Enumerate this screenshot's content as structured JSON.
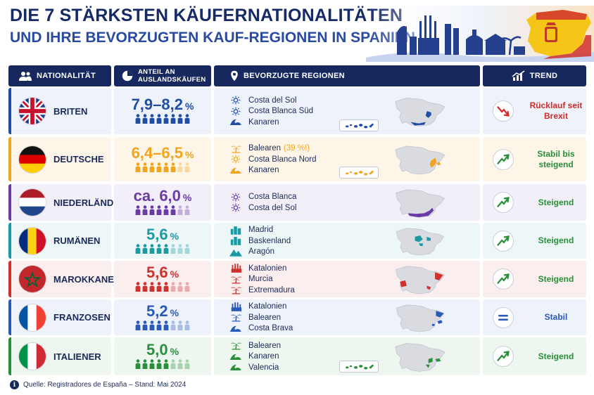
{
  "title": {
    "line1": "DIE 7 STÄRKSTEN KÄUFERNATIONALITÄTEN",
    "line2": "UND IHRE BEVORZUGTEN KAUF-REGIONEN IN SPANIEN"
  },
  "header": {
    "nationality": "NATIONALITÄT",
    "share_line1": "ANTEIL AN",
    "share_line2": "AUSLANDSKÄUFEN",
    "regions": "BEVORZUGTE REGIONEN",
    "trend": "TREND",
    "icons": [
      "people-icon",
      "pie-chart-icon",
      "location-pin-icon",
      "trend-chart-icon"
    ]
  },
  "rows": [
    {
      "name": "BRITEN",
      "share": "7,9–8,2",
      "unit": "%",
      "share_fraction": 0.82,
      "color": "#1f4ea3",
      "tint": "#eef2fa",
      "flag": "uk-flag",
      "regions": [
        {
          "label": "Costa del Sol",
          "note": "",
          "icon": "sun-icon"
        },
        {
          "label": "Costa Blanca Süd",
          "note": "",
          "icon": "sun-icon"
        },
        {
          "label": "Kanaren",
          "note": "",
          "icon": "wave-icon"
        }
      ],
      "canary_inset": true,
      "trend": {
        "icon": "trend-down-icon",
        "text": "Rücklauf seit Brexit",
        "color": "#d32a2a"
      }
    },
    {
      "name": "DEUTSCHE",
      "share": "6,4–6,5",
      "unit": "%",
      "share_fraction": 0.65,
      "color": "#f0a51e",
      "tint": "#fdf6e8",
      "flag": "germany-flag",
      "regions": [
        {
          "label": "Balearen",
          "note": "(39 %!)",
          "icon": "palm-tree-icon"
        },
        {
          "label": "Costa Blanca Nord",
          "note": "",
          "icon": "sun-icon"
        },
        {
          "label": "Kanaren",
          "note": "",
          "icon": "wave-icon"
        }
      ],
      "canary_inset": true,
      "trend": {
        "icon": "trend-up-icon",
        "text": "Stabil bis steigend",
        "color": "#2a8f3a"
      }
    },
    {
      "name": "NIEDERLÄNDER",
      "share": "ca. 6,0",
      "unit": "%",
      "share_fraction": 0.6,
      "color": "#6a3aa6",
      "tint": "#f3eff8",
      "flag": "netherlands-flag",
      "regions": [
        {
          "label": "Costa Blanca",
          "note": "",
          "icon": "sun-icon"
        },
        {
          "label": "Costa del Sol",
          "note": "",
          "icon": "sun-icon"
        }
      ],
      "canary_inset": false,
      "trend": {
        "icon": "trend-up-icon",
        "text": "Steigend",
        "color": "#2a8f3a"
      }
    },
    {
      "name": "RUMÄNEN",
      "share": "5,6",
      "unit": "%",
      "share_fraction": 0.56,
      "color": "#1c9aa4",
      "tint": "#edf7f8",
      "flag": "romania-flag",
      "regions": [
        {
          "label": "Madrid",
          "note": "",
          "icon": "city-icon"
        },
        {
          "label": "Baskenland",
          "note": "",
          "icon": "city-icon"
        },
        {
          "label": "Aragón",
          "note": "",
          "icon": "mountain-icon"
        }
      ],
      "canary_inset": false,
      "trend": {
        "icon": "trend-up-icon",
        "text": "Steigend",
        "color": "#2a8f3a"
      }
    },
    {
      "name": "MAROKKANER",
      "share": "5,6",
      "unit": "%",
      "share_fraction": 0.56,
      "color": "#d0312d",
      "tint": "#fbeeee",
      "flag": "morocco-flag",
      "regions": [
        {
          "label": "Katalonien",
          "note": "",
          "icon": "cathedral-icon"
        },
        {
          "label": "Murcia",
          "note": "",
          "icon": "palm-tree-icon"
        },
        {
          "label": "Extremadura",
          "note": "",
          "icon": "palm-tree-icon"
        }
      ],
      "canary_inset": false,
      "trend": {
        "icon": "trend-up-icon",
        "text": "Steigend",
        "color": "#2a8f3a"
      }
    },
    {
      "name": "FRANZOSEN",
      "share": "5,2",
      "unit": "%",
      "share_fraction": 0.52,
      "color": "#2a5ab8",
      "tint": "#eef2fa",
      "flag": "france-flag",
      "regions": [
        {
          "label": "Katalonien",
          "note": "",
          "icon": "cathedral-icon"
        },
        {
          "label": "Balearen",
          "note": "",
          "icon": "palm-tree-icon"
        },
        {
          "label": "Costa Brava",
          "note": "",
          "icon": "wave-icon"
        }
      ],
      "canary_inset": false,
      "trend": {
        "icon": "stable-icon",
        "text": "Stabil",
        "color": "#2a5ab8"
      }
    },
    {
      "name": "ITALIENER",
      "share": "5,0",
      "unit": "%",
      "share_fraction": 0.5,
      "color": "#2a8f3a",
      "tint": "#eef7ef",
      "flag": "italy-flag",
      "regions": [
        {
          "label": "Balearen",
          "note": "",
          "icon": "palm-tree-icon"
        },
        {
          "label": "Kanaren",
          "note": "",
          "icon": "wave-icon"
        },
        {
          "label": "Valencia",
          "note": "",
          "icon": "wave-icon"
        }
      ],
      "canary_inset": true,
      "trend": {
        "icon": "trend-up-icon",
        "text": "Steigend",
        "color": "#2a8f3a"
      }
    }
  ],
  "source": "Quelle: Registradores de España – Stand: Mai 2024"
}
